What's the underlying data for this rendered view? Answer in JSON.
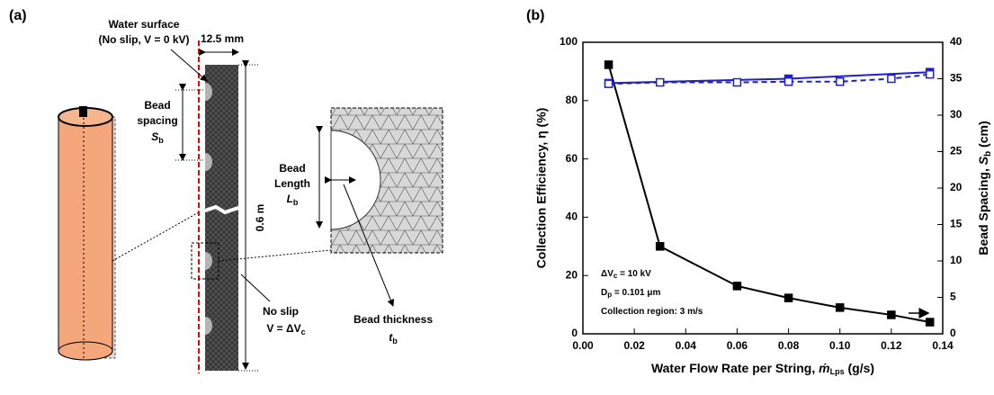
{
  "panel_a": {
    "label": "(a)",
    "water_surface": "Water surface",
    "no_slip_top": "(No slip, V = 0 kV)",
    "width": "12.5 mm",
    "bead_spacing": [
      "Bead",
      "spacing"
    ],
    "spacing_symbol": "S",
    "spacing_sub": "b",
    "height": "0.6 m",
    "no_slip": "No slip",
    "voltage": "V = ΔV",
    "voltage_sub": "c",
    "bead_length": [
      "Bead",
      "Length"
    ],
    "length_symbol": "L",
    "length_sub": "b",
    "bead_thickness": "Bead thickness",
    "thickness_symbol": "t",
    "thickness_sub": "b"
  },
  "chart_data": {
    "type": "line",
    "panel_label": "(b)",
    "x_label": {
      "text": "Water Flow Rate per String, ",
      "symbol": "ṁ",
      "sub": "Lps",
      "unit": " (g/s)"
    },
    "y_label": "Collection Efficiency,  η (%)",
    "y2_label": {
      "text": "Bead Spacing, ",
      "symbol": "S",
      "sub": "b",
      "unit": " (cm)"
    },
    "annotations": [
      {
        "text": "ΔV",
        "sub": "c",
        "rest": " = 10 kV"
      },
      {
        "text": "D",
        "sub": "p",
        "rest": " = 0.101 μm"
      },
      {
        "text": "Collection region: 3 m/s"
      }
    ],
    "xlim": [
      0,
      0.14
    ],
    "xticks": [
      {
        "value": 0,
        "label": "0.00"
      },
      {
        "value": 0.02,
        "label": "0.02"
      },
      {
        "value": 0.04,
        "label": "0.04"
      },
      {
        "value": 0.06,
        "label": "0.06"
      },
      {
        "value": 0.08,
        "label": "0.08"
      },
      {
        "value": 0.1,
        "label": "0.10"
      },
      {
        "value": 0.12,
        "label": "0.12"
      },
      {
        "value": 0.14,
        "label": "0.14"
      }
    ],
    "ylim": [
      0,
      100
    ],
    "yticks": [
      0,
      20,
      40,
      60,
      80,
      100
    ],
    "y2lim": [
      0,
      40
    ],
    "y2ticks": [
      0,
      5,
      10,
      15,
      20,
      25,
      30,
      35,
      40
    ],
    "series": [
      {
        "color": "#000000",
        "marker": "filled",
        "dash": false,
        "x": [
          0.01,
          0.03,
          0.06,
          0.08,
          0.1,
          0.12,
          0.135
        ],
        "values": [
          92.3,
          30,
          16.4,
          12.3,
          9,
          6.5,
          4
        ]
      },
      {
        "color": "#1f1fc8",
        "marker": "filled",
        "dash": false,
        "axis": "y2",
        "x": [
          0.01,
          0.08,
          0.135
        ],
        "values": [
          34.4,
          35.0,
          35.9
        ]
      },
      {
        "color": "#1f1fc8",
        "marker": "open",
        "dash": true,
        "axis": "y2",
        "x": [
          0.01,
          0.03,
          0.06,
          0.08,
          0.1,
          0.12,
          0.135
        ],
        "values": [
          34.3,
          34.5,
          34.5,
          34.6,
          34.6,
          35.0,
          35.6
        ]
      }
    ]
  }
}
